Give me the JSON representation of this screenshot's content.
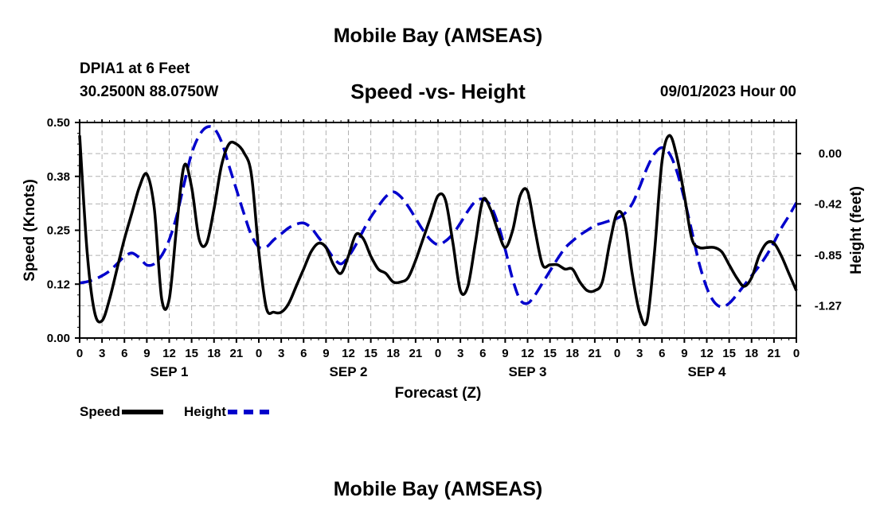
{
  "header": {
    "title": "Mobile Bay (AMSEAS)",
    "station": "DPIA1 at 6 Feet",
    "coordinates": "30.2500N  88.0750W",
    "subtitle": "Speed -vs- Height",
    "datetime": "09/01/2023 Hour 00"
  },
  "footer": {
    "title": "Mobile Bay (AMSEAS)"
  },
  "legend": {
    "speed_label": "Speed",
    "height_label": "Height",
    "speed_color": "#000000",
    "height_color": "#0000cc"
  },
  "chart_data": {
    "type": "line",
    "xlabel": "Forecast (Z)",
    "ylabel_left": "Speed (Knots)",
    "ylabel_right": "Height (feet)",
    "x_unit": "hours from 09/01/2023 00Z",
    "xlim": [
      0,
      96
    ],
    "ylim_left": [
      0,
      0.5
    ],
    "ylim_right": [
      -1.54,
      0.26
    ],
    "x_tick_labels": [
      "0",
      "3",
      "6",
      "9",
      "12",
      "15",
      "18",
      "21",
      "0",
      "3",
      "6",
      "9",
      "12",
      "15",
      "18",
      "21",
      "0",
      "3",
      "6",
      "9",
      "12",
      "15",
      "18",
      "21",
      "0",
      "3",
      "6",
      "9",
      "12",
      "15",
      "18",
      "21",
      "0"
    ],
    "y_left_tick_labels": [
      "0.00",
      "0.12",
      "0.25",
      "0.38",
      "0.50"
    ],
    "y_left_tick_values": [
      0,
      0.125,
      0.25,
      0.375,
      0.5
    ],
    "y_right_tick_labels": [
      "-1.27",
      "-0.85",
      "-0.42",
      "0.00"
    ],
    "y_right_tick_values": [
      -1.27,
      -0.85,
      -0.42,
      0.0
    ],
    "day_labels": [
      {
        "label": "SEP 1",
        "x": 12
      },
      {
        "label": "SEP 2",
        "x": 36
      },
      {
        "label": "SEP 3",
        "x": 60
      },
      {
        "label": "SEP 4",
        "x": 84
      }
    ],
    "grid": true,
    "series": [
      {
        "name": "Speed",
        "axis": "left",
        "color": "#000000",
        "dash": "solid",
        "x": [
          0,
          1,
          2,
          3,
          4,
          5,
          6,
          7,
          8,
          9,
          10,
          11,
          12,
          13,
          14,
          15,
          16,
          17,
          18,
          19,
          20,
          21,
          22,
          23,
          24,
          25,
          26,
          27,
          28,
          29,
          30,
          31,
          32,
          33,
          34,
          35,
          36,
          37,
          38,
          39,
          40,
          41,
          42,
          43,
          44,
          45,
          46,
          47,
          48,
          49,
          50,
          51,
          52,
          53,
          54,
          55,
          56,
          57,
          58,
          59,
          60,
          61,
          62,
          63,
          64,
          65,
          66,
          67,
          68,
          69,
          70,
          71,
          72,
          73,
          74,
          75,
          76,
          77,
          78,
          79,
          80,
          81,
          82,
          83,
          84,
          85,
          86,
          87,
          88,
          89,
          90,
          91,
          92,
          93,
          94,
          95,
          96
        ],
        "values": [
          0.47,
          0.2,
          0.06,
          0.04,
          0.09,
          0.16,
          0.23,
          0.29,
          0.35,
          0.38,
          0.3,
          0.09,
          0.09,
          0.26,
          0.4,
          0.35,
          0.23,
          0.22,
          0.3,
          0.4,
          0.45,
          0.45,
          0.43,
          0.38,
          0.2,
          0.07,
          0.06,
          0.06,
          0.08,
          0.12,
          0.16,
          0.2,
          0.22,
          0.21,
          0.17,
          0.15,
          0.19,
          0.24,
          0.23,
          0.19,
          0.16,
          0.15,
          0.13,
          0.13,
          0.14,
          0.18,
          0.23,
          0.28,
          0.33,
          0.32,
          0.22,
          0.11,
          0.12,
          0.22,
          0.32,
          0.3,
          0.25,
          0.21,
          0.25,
          0.33,
          0.34,
          0.25,
          0.17,
          0.17,
          0.17,
          0.16,
          0.16,
          0.13,
          0.11,
          0.11,
          0.13,
          0.22,
          0.29,
          0.27,
          0.15,
          0.06,
          0.04,
          0.2,
          0.41,
          0.47,
          0.42,
          0.33,
          0.23,
          0.21,
          0.21,
          0.21,
          0.2,
          0.17,
          0.14,
          0.12,
          0.14,
          0.19,
          0.22,
          0.22,
          0.19,
          0.15,
          0.11
        ]
      },
      {
        "name": "Height",
        "axis": "right",
        "color": "#0000cc",
        "dash": "dashed",
        "x": [
          0,
          1,
          2,
          3,
          4,
          5,
          6,
          7,
          8,
          9,
          10,
          11,
          12,
          13,
          14,
          15,
          16,
          17,
          18,
          19,
          20,
          21,
          22,
          23,
          24,
          25,
          26,
          27,
          28,
          29,
          30,
          31,
          32,
          33,
          34,
          35,
          36,
          37,
          38,
          39,
          40,
          41,
          42,
          43,
          44,
          45,
          46,
          47,
          48,
          49,
          50,
          51,
          52,
          53,
          54,
          55,
          56,
          57,
          58,
          59,
          60,
          61,
          62,
          63,
          64,
          65,
          66,
          67,
          68,
          69,
          70,
          71,
          72,
          73,
          74,
          75,
          76,
          77,
          78,
          79,
          80,
          81,
          82,
          83,
          84,
          85,
          86,
          87,
          88,
          89,
          90,
          91,
          92,
          93,
          94,
          95,
          96
        ],
        "values": [
          -1.08,
          -1.07,
          -1.05,
          -1.02,
          -0.98,
          -0.92,
          -0.86,
          -0.83,
          -0.87,
          -0.93,
          -0.92,
          -0.85,
          -0.72,
          -0.52,
          -0.25,
          0.0,
          0.15,
          0.22,
          0.21,
          0.1,
          -0.1,
          -0.3,
          -0.5,
          -0.68,
          -0.78,
          -0.78,
          -0.72,
          -0.67,
          -0.62,
          -0.59,
          -0.58,
          -0.62,
          -0.7,
          -0.78,
          -0.87,
          -0.92,
          -0.86,
          -0.76,
          -0.64,
          -0.53,
          -0.44,
          -0.36,
          -0.32,
          -0.36,
          -0.44,
          -0.54,
          -0.64,
          -0.72,
          -0.76,
          -0.73,
          -0.67,
          -0.58,
          -0.48,
          -0.4,
          -0.38,
          -0.43,
          -0.58,
          -0.8,
          -1.05,
          -1.22,
          -1.25,
          -1.18,
          -1.08,
          -0.98,
          -0.88,
          -0.79,
          -0.73,
          -0.68,
          -0.64,
          -0.6,
          -0.58,
          -0.56,
          -0.54,
          -0.5,
          -0.42,
          -0.28,
          -0.12,
          0.0,
          0.05,
          0.0,
          -0.15,
          -0.38,
          -0.65,
          -0.92,
          -1.12,
          -1.24,
          -1.28,
          -1.25,
          -1.18,
          -1.1,
          -1.02,
          -0.94,
          -0.85,
          -0.74,
          -0.62,
          -0.52,
          -0.41
        ]
      }
    ]
  }
}
